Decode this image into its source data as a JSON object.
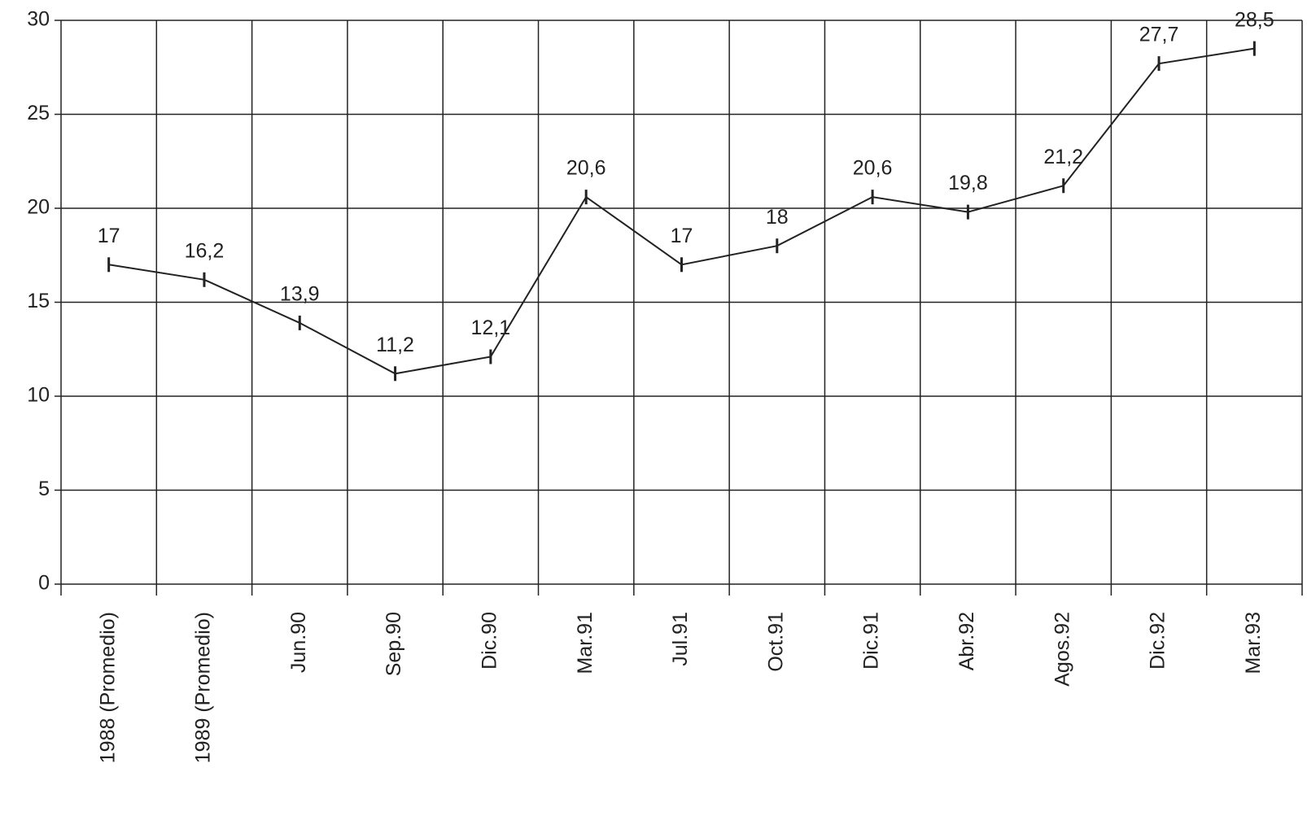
{
  "chart_data": {
    "type": "line",
    "categories": [
      "1988 (Promedio)",
      "1989 (Promedio)",
      "Jun.90",
      "Sep.90",
      "Dic.90",
      "Mar.91",
      "Jul.91",
      "Oct.91",
      "Dic.91",
      "Abr.92",
      "Agos.92",
      "Dic.92",
      "Mar.93"
    ],
    "values": [
      17,
      16.2,
      13.9,
      11.2,
      12.1,
      20.6,
      17,
      18,
      20.6,
      19.8,
      21.2,
      27.7,
      28.5
    ],
    "value_labels": [
      "17",
      "16,2",
      "13,9",
      "11,2",
      "12,1",
      "20,6",
      "17",
      "18",
      "20,6",
      "19,8",
      "21,2",
      "27,7",
      "28,5"
    ],
    "color": "#222222",
    "ylim": [
      0,
      30
    ],
    "yticks": [
      0,
      5,
      10,
      15,
      20,
      25,
      30
    ],
    "grid": true
  }
}
